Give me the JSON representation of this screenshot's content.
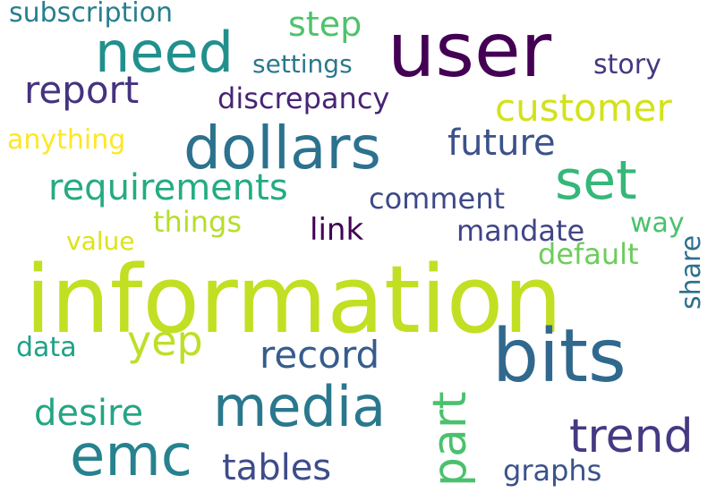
{
  "words": [
    {
      "id": "information",
      "text": "information",
      "color": "#c2df23"
    },
    {
      "id": "user",
      "text": "user",
      "color": "#440154"
    },
    {
      "id": "bits",
      "text": "bits",
      "color": "#31688e"
    },
    {
      "id": "dollars",
      "text": "dollars",
      "color": "#2c728e"
    },
    {
      "id": "need",
      "text": "need",
      "color": "#21908d"
    },
    {
      "id": "media",
      "text": "media",
      "color": "#2a788e"
    },
    {
      "id": "emc",
      "text": "emc",
      "color": "#26828e"
    },
    {
      "id": "set",
      "text": "set",
      "color": "#35b779"
    },
    {
      "id": "trend",
      "text": "trend",
      "color": "#443a83"
    },
    {
      "id": "part",
      "text": "part",
      "color": "#4ac16d"
    },
    {
      "id": "yep",
      "text": "yep",
      "color": "#bddf26"
    },
    {
      "id": "report",
      "text": "report",
      "color": "#46327e"
    },
    {
      "id": "customer",
      "text": "customer",
      "color": "#d2e21b"
    },
    {
      "id": "requirements",
      "text": "requirements",
      "color": "#25ab82"
    },
    {
      "id": "record",
      "text": "record",
      "color": "#365c8d"
    },
    {
      "id": "future",
      "text": "future",
      "color": "#3b528b"
    },
    {
      "id": "desire",
      "text": "desire",
      "color": "#25a584"
    },
    {
      "id": "tables",
      "text": "tables",
      "color": "#3e4c8a"
    },
    {
      "id": "step",
      "text": "step",
      "color": "#4ec36b"
    },
    {
      "id": "discrepancy",
      "text": "discrepancy",
      "color": "#482475"
    },
    {
      "id": "subscription",
      "text": "subscription",
      "color": "#277f8e"
    },
    {
      "id": "settings",
      "text": "settings",
      "color": "#2a788e"
    },
    {
      "id": "story",
      "text": "story",
      "color": "#453781"
    },
    {
      "id": "anything",
      "text": "anything",
      "color": "#fde725"
    },
    {
      "id": "comment",
      "text": "comment",
      "color": "#3e4989"
    },
    {
      "id": "things",
      "text": "things",
      "color": "#b5de2b"
    },
    {
      "id": "link",
      "text": "link",
      "color": "#440154"
    },
    {
      "id": "mandate",
      "text": "mandate",
      "color": "#414487"
    },
    {
      "id": "way",
      "text": "way",
      "color": "#4ac16d"
    },
    {
      "id": "value",
      "text": "value",
      "color": "#dde318"
    },
    {
      "id": "default",
      "text": "default",
      "color": "#6ccd5a"
    },
    {
      "id": "share",
      "text": "share",
      "color": "#2d708e"
    },
    {
      "id": "data",
      "text": "data",
      "color": "#1fa187"
    },
    {
      "id": "graphs",
      "text": "graphs",
      "color": "#3b528b"
    }
  ]
}
